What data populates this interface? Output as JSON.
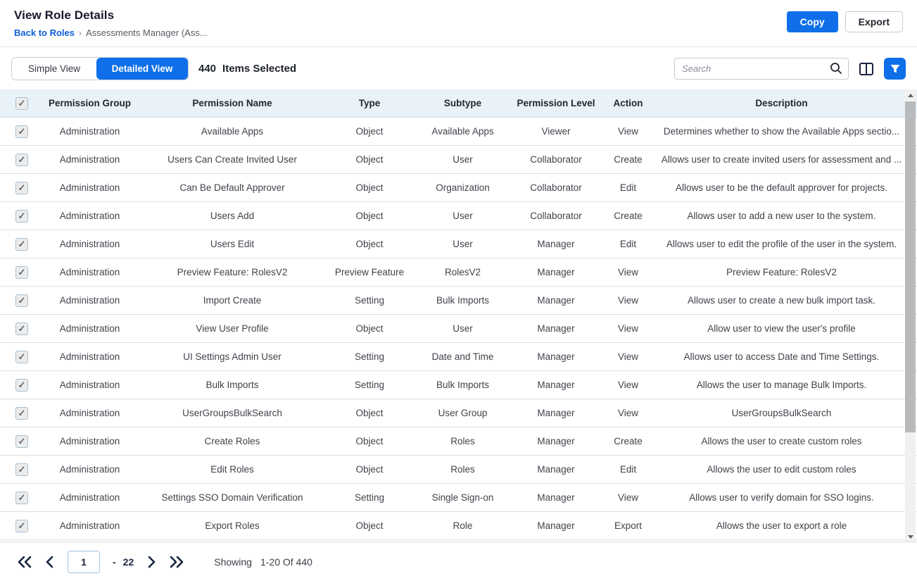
{
  "header": {
    "title": "View Role Details",
    "back_label": "Back to Roles",
    "breadcrumb_sep": "›",
    "current_role": "Assessments Manager (Ass...",
    "copy_label": "Copy",
    "export_label": "Export"
  },
  "toolbar": {
    "simple_view_label": "Simple View",
    "detailed_view_label": "Detailed View",
    "selected_count": "440",
    "selected_text": "Items Selected",
    "search_placeholder": "Search"
  },
  "table": {
    "columns": [
      "Permission Group",
      "Permission Name",
      "Type",
      "Subtype",
      "Permission Level",
      "Action",
      "Description"
    ],
    "rows": [
      {
        "group": "Administration",
        "name": "Available Apps",
        "type": "Object",
        "subtype": "Available Apps",
        "level": "Viewer",
        "action": "View",
        "description": "Determines whether to show the Available Apps sectio..."
      },
      {
        "group": "Administration",
        "name": "Users Can Create Invited User",
        "type": "Object",
        "subtype": "User",
        "level": "Collaborator",
        "action": "Create",
        "description": "Allows user to create invited users for assessment and ..."
      },
      {
        "group": "Administration",
        "name": "Can Be Default Approver",
        "type": "Object",
        "subtype": "Organization",
        "level": "Collaborator",
        "action": "Edit",
        "description": "Allows user to be the default approver for projects."
      },
      {
        "group": "Administration",
        "name": "Users Add",
        "type": "Object",
        "subtype": "User",
        "level": "Collaborator",
        "action": "Create",
        "description": "Allows user to add a new user to the system."
      },
      {
        "group": "Administration",
        "name": "Users Edit",
        "type": "Object",
        "subtype": "User",
        "level": "Manager",
        "action": "Edit",
        "description": "Allows user to edit the profile of the user in the system."
      },
      {
        "group": "Administration",
        "name": "Preview Feature: RolesV2",
        "type": "Preview Feature",
        "subtype": "RolesV2",
        "level": "Manager",
        "action": "View",
        "description": "Preview Feature: RolesV2"
      },
      {
        "group": "Administration",
        "name": "Import Create",
        "type": "Setting",
        "subtype": "Bulk Imports",
        "level": "Manager",
        "action": "View",
        "description": "Allows user to create a new bulk import task."
      },
      {
        "group": "Administration",
        "name": "View User Profile",
        "type": "Object",
        "subtype": "User",
        "level": "Manager",
        "action": "View",
        "description": "Allow user to view the user's profile"
      },
      {
        "group": "Administration",
        "name": "UI Settings Admin User",
        "type": "Setting",
        "subtype": "Date and Time",
        "level": "Manager",
        "action": "View",
        "description": "Allows user to access Date and Time Settings."
      },
      {
        "group": "Administration",
        "name": "Bulk Imports",
        "type": "Setting",
        "subtype": "Bulk Imports",
        "level": "Manager",
        "action": "View",
        "description": "Allows the user to manage Bulk Imports."
      },
      {
        "group": "Administration",
        "name": "UserGroupsBulkSearch",
        "type": "Object",
        "subtype": "User Group",
        "level": "Manager",
        "action": "View",
        "description": "UserGroupsBulkSearch"
      },
      {
        "group": "Administration",
        "name": "Create Roles",
        "type": "Object",
        "subtype": "Roles",
        "level": "Manager",
        "action": "Create",
        "description": "Allows the user to create custom roles"
      },
      {
        "group": "Administration",
        "name": "Edit Roles",
        "type": "Object",
        "subtype": "Roles",
        "level": "Manager",
        "action": "Edit",
        "description": "Allows the user to edit custom roles"
      },
      {
        "group": "Administration",
        "name": "Settings SSO Domain Verification",
        "type": "Setting",
        "subtype": "Single Sign-on",
        "level": "Manager",
        "action": "View",
        "description": "Allows user to verify domain for SSO logins."
      },
      {
        "group": "Administration",
        "name": "Export Roles",
        "type": "Object",
        "subtype": "Role",
        "level": "Manager",
        "action": "Export",
        "description": "Allows the user to export a role"
      }
    ]
  },
  "pagination": {
    "current_page": "1",
    "sep_label": "-",
    "total_pages": "22",
    "showing_label": "Showing",
    "showing_range": "1-20 Of 440"
  },
  "colors": {
    "accent_blue": "#0E6FE8",
    "header_row_bg": "#e9f2f9",
    "link_blue": "#0E5FD8"
  }
}
